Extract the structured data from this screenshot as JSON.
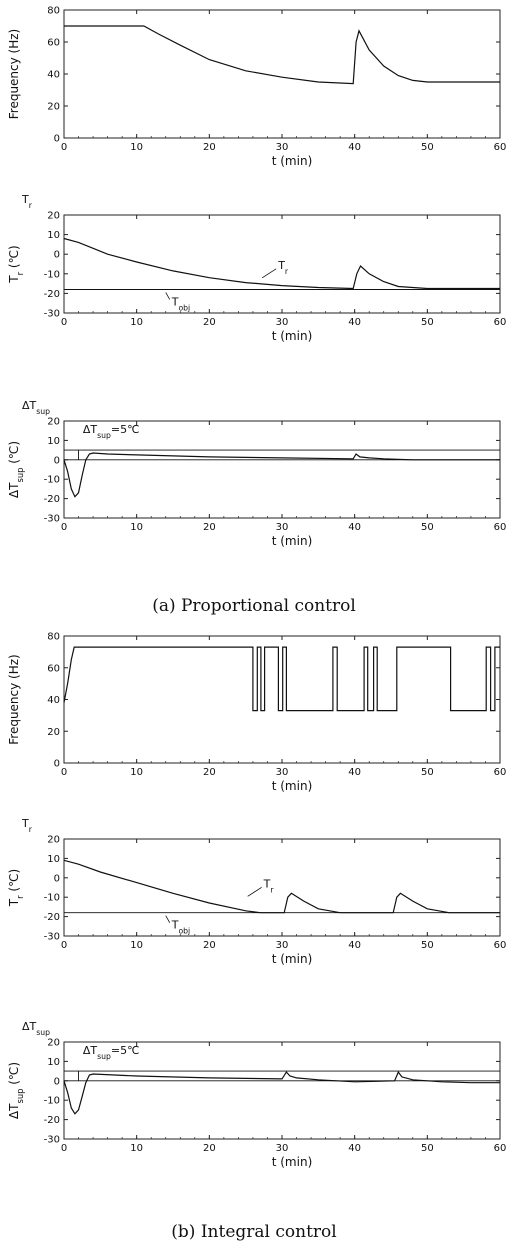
{
  "captions": {
    "a": "(a) Proportional control",
    "b": "(b) Integral control"
  },
  "colors": {
    "line": "#111111",
    "frame": "#222222",
    "background": "#ffffff"
  },
  "chart_data": [
    {
      "id": "a-frequency",
      "type": "line",
      "title": "",
      "xlabel": "t (min)",
      "ylabel": "Frequency (Hz)",
      "xlim": [
        0,
        60
      ],
      "ylim": [
        0,
        80
      ],
      "xticks": [
        0,
        10,
        20,
        30,
        40,
        50,
        60
      ],
      "yticks": [
        0,
        20,
        40,
        60,
        80
      ],
      "series": [
        {
          "x": [
            0,
            11,
            13,
            16,
            20,
            25,
            30,
            35,
            39.8,
            40.2,
            40.6,
            42,
            44,
            46,
            48,
            50,
            55,
            60
          ],
          "y": [
            70,
            70,
            65,
            58,
            49,
            42,
            38,
            35,
            34,
            60,
            67,
            55,
            45,
            39,
            36,
            35,
            35,
            35
          ]
        }
      ]
    },
    {
      "id": "a-tr",
      "type": "line",
      "title": "Tr",
      "xlabel": "t (min)",
      "ylabel": "Tr (℃)",
      "xlim": [
        0,
        60
      ],
      "ylim": [
        -30,
        20
      ],
      "xticks": [
        0,
        10,
        20,
        30,
        40,
        50,
        60
      ],
      "yticks": [
        -30,
        -20,
        -10,
        0,
        10,
        20
      ],
      "annotations": [
        "Tr",
        "Tobj"
      ],
      "series": [
        {
          "x": [
            0,
            2,
            4,
            6,
            10,
            15,
            20,
            25,
            30,
            35,
            39.8,
            40.3,
            40.8,
            42,
            44,
            46,
            50,
            55,
            60
          ],
          "y": [
            8,
            6,
            3,
            0,
            -4,
            -8.5,
            -12,
            -14.5,
            -16,
            -17,
            -17.5,
            -10,
            -6,
            -10,
            -14,
            -16.5,
            -17.5,
            -17.5,
            -17.5
          ]
        },
        {
          "x": [
            0,
            60
          ],
          "y": [
            -18,
            -18
          ]
        }
      ]
    },
    {
      "id": "a-dtsup",
      "type": "line",
      "title": "ΔTsup",
      "xlabel": "t (min)",
      "ylabel": "ΔTsup (℃)",
      "xlim": [
        0,
        60
      ],
      "ylim": [
        -30,
        20
      ],
      "xticks": [
        0,
        10,
        20,
        30,
        40,
        50,
        60
      ],
      "yticks": [
        -30,
        -20,
        -10,
        0,
        10,
        20
      ],
      "annotations": [
        "ΔTsup=5℃"
      ],
      "series": [
        {
          "x": [
            0,
            0.5,
            1,
            1.5,
            2,
            2.5,
            3,
            3.5,
            4,
            6,
            10,
            20,
            30,
            39.8,
            40.2,
            40.7,
            42,
            44,
            48,
            52,
            60
          ],
          "y": [
            0,
            -6,
            -15,
            -19,
            -17,
            -8,
            0,
            3,
            3.5,
            3,
            2.5,
            1.5,
            1,
            0.5,
            3,
            1.5,
            1,
            0.5,
            0,
            0,
            0
          ]
        },
        {
          "x": [
            0,
            60
          ],
          "y": [
            5,
            5
          ]
        },
        {
          "x": [
            0,
            60
          ],
          "y": [
            0,
            0
          ]
        }
      ]
    },
    {
      "id": "b-frequency",
      "type": "line",
      "title": "",
      "xlabel": "t (min)",
      "ylabel": "Frequency (Hz)",
      "xlim": [
        0,
        60
      ],
      "ylim": [
        0,
        80
      ],
      "xticks": [
        0,
        10,
        20,
        30,
        40,
        50,
        60
      ],
      "yticks": [
        0,
        20,
        40,
        60,
        80
      ],
      "series": [
        {
          "x": [
            0,
            0.5,
            1,
            1.4,
            26,
            26,
            26.6,
            26.6,
            27.1,
            27.1,
            27.6,
            27.6,
            29.5,
            29.5,
            30.1,
            30.1,
            30.6,
            30.6,
            37,
            37,
            37.6,
            37.6,
            41.3,
            41.3,
            41.8,
            41.8,
            42.6,
            42.6,
            43.1,
            43.1,
            45.8,
            45.8,
            53.2,
            53.2,
            58.1,
            58.1,
            58.7,
            58.7,
            59.3,
            59.3,
            60
          ],
          "y": [
            38,
            50,
            65,
            73,
            73,
            33,
            33,
            73,
            73,
            33,
            33,
            73,
            73,
            33,
            33,
            73,
            73,
            33,
            33,
            73,
            73,
            33,
            33,
            73,
            73,
            33,
            33,
            73,
            73,
            33,
            33,
            73,
            73,
            33,
            33,
            73,
            73,
            33,
            33,
            73,
            73
          ]
        }
      ]
    },
    {
      "id": "b-tr",
      "type": "line",
      "title": "Tr",
      "xlabel": "t (min)",
      "ylabel": "Tr (℃)",
      "xlim": [
        0,
        60
      ],
      "ylim": [
        -30,
        20
      ],
      "xticks": [
        0,
        10,
        20,
        30,
        40,
        50,
        60
      ],
      "yticks": [
        -30,
        -20,
        -10,
        0,
        10,
        20
      ],
      "annotations": [
        "Tr",
        "Tobj"
      ],
      "series": [
        {
          "x": [
            0,
            2,
            5,
            10,
            15,
            20,
            25,
            27,
            30.3,
            30.8,
            31.3,
            33,
            35,
            38,
            45.3,
            45.8,
            46.3,
            48,
            50,
            53,
            60
          ],
          "y": [
            9,
            7,
            3,
            -2.5,
            -8,
            -13,
            -17,
            -18,
            -18,
            -10,
            -8,
            -12,
            -16,
            -18,
            -18,
            -10,
            -8,
            -12,
            -16,
            -18,
            -18
          ]
        },
        {
          "x": [
            0,
            60
          ],
          "y": [
            -18,
            -18
          ]
        }
      ]
    },
    {
      "id": "b-dtsup",
      "type": "line",
      "title": "ΔTsup",
      "xlabel": "t (min)",
      "ylabel": "ΔTsup (℃)",
      "xlim": [
        0,
        60
      ],
      "ylim": [
        -30,
        20
      ],
      "xticks": [
        0,
        10,
        20,
        30,
        40,
        50,
        60
      ],
      "yticks": [
        -30,
        -20,
        -10,
        0,
        10,
        20
      ],
      "annotations": [
        "ΔTsup=5℃"
      ],
      "series": [
        {
          "x": [
            0,
            0.5,
            1,
            1.5,
            2,
            2.5,
            3,
            3.5,
            4,
            10,
            20,
            30,
            30.6,
            31.1,
            32,
            35,
            40,
            45.5,
            46,
            46.5,
            48,
            52,
            56,
            60
          ],
          "y": [
            0,
            -6,
            -14,
            -17,
            -15,
            -8,
            -1,
            3,
            3.5,
            2.5,
            1.5,
            1,
            4.5,
            2.5,
            1.5,
            0.5,
            -0.5,
            0,
            4.5,
            2,
            0.5,
            -0.5,
            -1,
            -1
          ]
        },
        {
          "x": [
            0,
            60
          ],
          "y": [
            5,
            5
          ]
        },
        {
          "x": [
            0,
            60
          ],
          "y": [
            0,
            0
          ]
        }
      ]
    }
  ]
}
